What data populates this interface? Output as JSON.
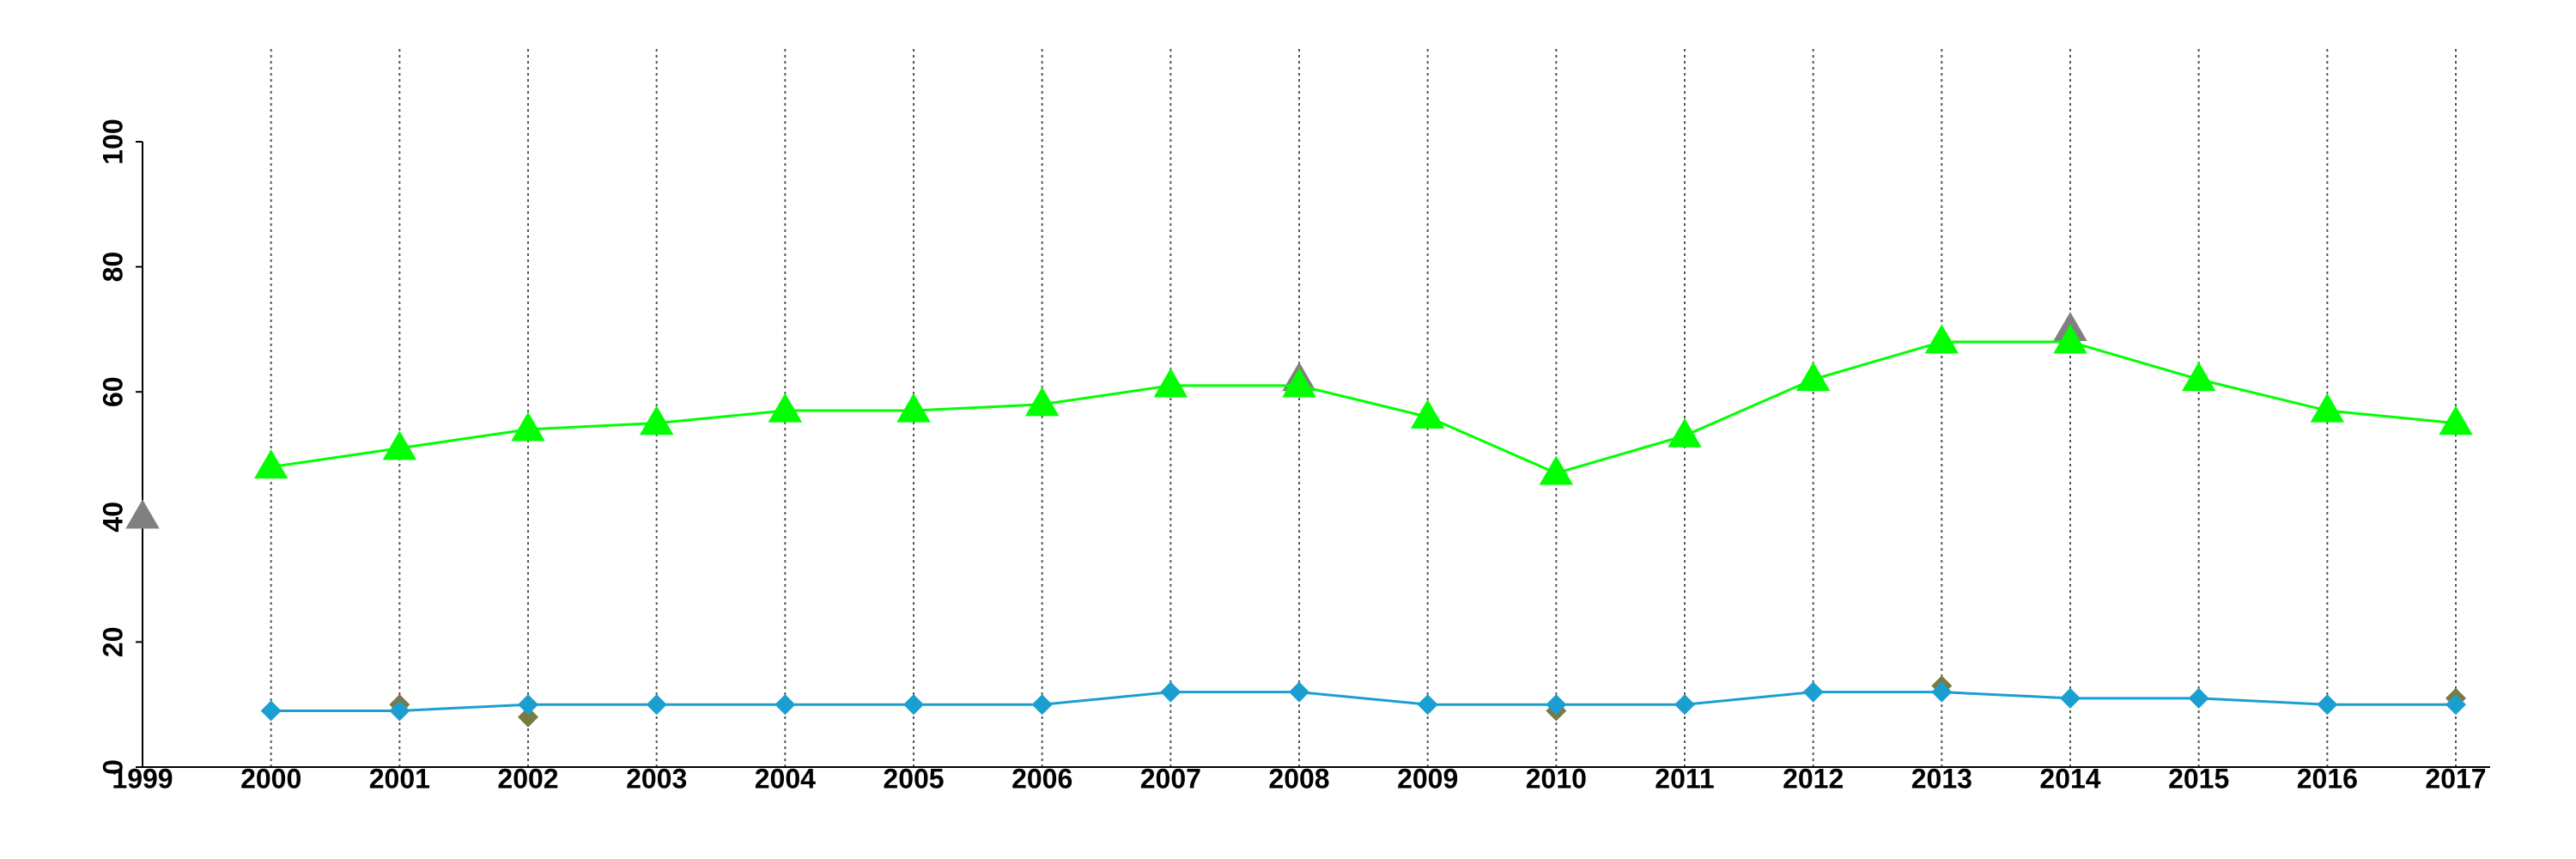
{
  "chart_data": {
    "type": "line",
    "x": [
      1999,
      2000,
      2001,
      2002,
      2003,
      2004,
      2005,
      2006,
      2007,
      2008,
      2009,
      2010,
      2011,
      2012,
      2013,
      2014,
      2015,
      2016,
      2017
    ],
    "series": [
      {
        "color": "#808080",
        "marker": "triangle",
        "line": false,
        "values": [
          40,
          null,
          null,
          null,
          null,
          null,
          null,
          null,
          null,
          62,
          null,
          null,
          null,
          null,
          null,
          70,
          null,
          null,
          null
        ]
      },
      {
        "color": "#7a7a45",
        "marker": "diamond",
        "line": false,
        "values": [
          null,
          null,
          10,
          8,
          null,
          null,
          null,
          null,
          null,
          null,
          null,
          9,
          null,
          null,
          13,
          null,
          null,
          null,
          11
        ]
      },
      {
        "color": "#00ff00",
        "marker": "triangle",
        "line": true,
        "values": [
          null,
          48,
          51,
          54,
          55,
          57,
          57,
          58,
          61,
          61,
          56,
          47,
          53,
          62,
          68,
          68,
          62,
          57,
          55
        ]
      },
      {
        "color": "#1a9fd0",
        "marker": "diamond",
        "line": true,
        "values": [
          null,
          9,
          9,
          10,
          10,
          10,
          10,
          10,
          12,
          12,
          10,
          10,
          10,
          12,
          12,
          11,
          11,
          10,
          10
        ]
      }
    ],
    "xlim": [
      1999,
      2017
    ],
    "xticks": [
      1999,
      2000,
      2001,
      2002,
      2003,
      2004,
      2005,
      2006,
      2007,
      2008,
      2009,
      2010,
      2011,
      2012,
      2013,
      2014,
      2015,
      2016,
      2017
    ],
    "ylim": [
      0,
      100
    ],
    "yticks": [
      0,
      20,
      40,
      60,
      80,
      100
    ],
    "grid": "x"
  }
}
